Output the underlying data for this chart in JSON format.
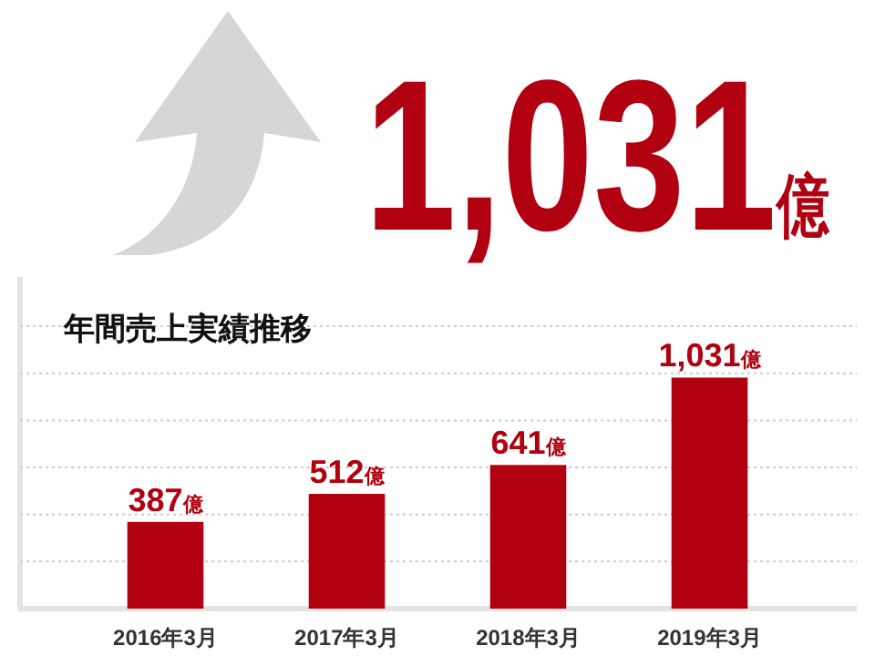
{
  "chart_data": {
    "type": "bar",
    "title": "年間売上実績推移",
    "categories": [
      "2016年3月",
      "2017年3月",
      "2018年3月",
      "2019年3月"
    ],
    "values": [
      387,
      512,
      641,
      1031
    ],
    "value_labels": [
      "387億",
      "512億",
      "641億",
      "1,031億"
    ],
    "color": "#b1000f",
    "ylim": [
      0,
      1480
    ],
    "yticks": [
      {
        "value": 0,
        "label": null
      },
      {
        "value": 210,
        "label": null
      },
      {
        "value": 420,
        "label": null
      },
      {
        "value": 630,
        "label": null
      },
      {
        "value": 840,
        "label": null
      },
      {
        "value": 1050,
        "label": null
      },
      {
        "value": 1260,
        "label": null
      }
    ],
    "grid": "y",
    "tick_labels": "x",
    "annotations": [
      "1,031億"
    ]
  }
}
